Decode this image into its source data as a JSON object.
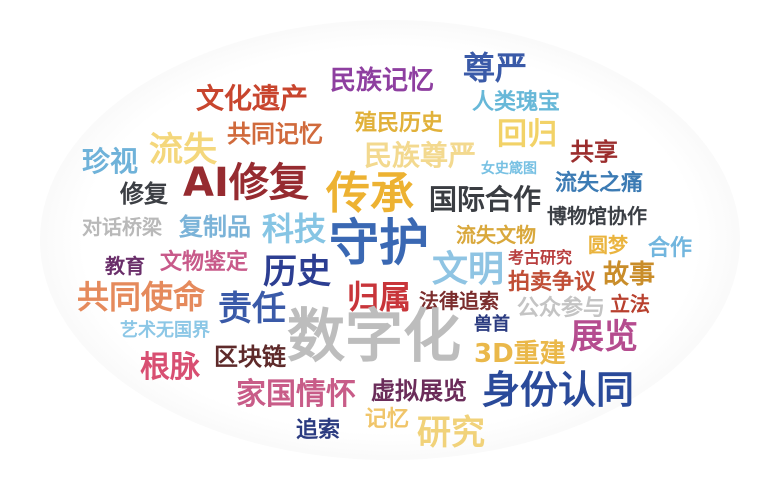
{
  "words": [
    {
      "text": "尊严",
      "color": "#3a5aa8"
    },
    {
      "text": "民族记忆",
      "color": "#8e3fa0"
    },
    {
      "text": "文化遗产",
      "color": "#c8452e"
    },
    {
      "text": "人类瑰宝",
      "color": "#67b8d8"
    },
    {
      "text": "殖民历史",
      "color": "#e1b13a"
    },
    {
      "text": "共同记忆",
      "color": "#d06a3c"
    },
    {
      "text": "回归",
      "color": "#f2d267"
    },
    {
      "text": "流失",
      "color": "#f4d77c"
    },
    {
      "text": "民族尊严",
      "color": "#f3d98f"
    },
    {
      "text": "共享",
      "color": "#9b2d2d"
    },
    {
      "text": "珍视",
      "color": "#6fb2d9"
    },
    {
      "text": "AI修复",
      "color": "#962b30"
    },
    {
      "text": "传承",
      "color": "#edb232"
    },
    {
      "text": "女史箴图",
      "color": "#78c1e3"
    },
    {
      "text": "流失之痛",
      "color": "#3c7bb4"
    },
    {
      "text": "修复",
      "color": "#3c3f44"
    },
    {
      "text": "国际合作",
      "color": "#3a3d42"
    },
    {
      "text": "博物馆协作",
      "color": "#3b3f45"
    },
    {
      "text": "对话桥梁",
      "color": "#b9b9b9"
    },
    {
      "text": "复制品",
      "color": "#7bb3d8"
    },
    {
      "text": "科技",
      "color": "#86c5e4"
    },
    {
      "text": "守护",
      "color": "#3a68b3"
    },
    {
      "text": "流失文物",
      "color": "#d9a83c"
    },
    {
      "text": "圆梦",
      "color": "#eab43f"
    },
    {
      "text": "合作",
      "color": "#72b6de"
    },
    {
      "text": "教育",
      "color": "#6a2f6a"
    },
    {
      "text": "文物鉴定",
      "color": "#c85a8a"
    },
    {
      "text": "历史",
      "color": "#2c3e92"
    },
    {
      "text": "文明",
      "color": "#8fc4e3"
    },
    {
      "text": "考古研究",
      "color": "#b83e3e"
    },
    {
      "text": "拍卖争议",
      "color": "#c04e36"
    },
    {
      "text": "故事",
      "color": "#c98d2a"
    },
    {
      "text": "共同使命",
      "color": "#e58a5c"
    },
    {
      "text": "归属",
      "color": "#c8353a"
    },
    {
      "text": "法律追索",
      "color": "#7b2d2d"
    },
    {
      "text": "公众参与",
      "color": "#c4c4c4"
    },
    {
      "text": "立法",
      "color": "#b8402e"
    },
    {
      "text": "责任",
      "color": "#3a5aa8"
    },
    {
      "text": "艺术无国界",
      "color": "#8cc7e6"
    },
    {
      "text": "数字化",
      "color": "#bdbdbd"
    },
    {
      "text": "兽首",
      "color": "#2b3b80"
    },
    {
      "text": "展览",
      "color": "#b54c8f"
    },
    {
      "text": "根脉",
      "color": "#d84f72"
    },
    {
      "text": "区块链",
      "color": "#5e2a2a"
    },
    {
      "text": "3D重建",
      "color": "#eab84a"
    },
    {
      "text": "家国情怀",
      "color": "#c85c88"
    },
    {
      "text": "虚拟展览",
      "color": "#6b2c5a"
    },
    {
      "text": "身份认同",
      "color": "#2a4a9a"
    },
    {
      "text": "追索",
      "color": "#2b3b80"
    },
    {
      "text": "记忆",
      "color": "#f0c56a"
    },
    {
      "text": "研究",
      "color": "#f1d27a"
    }
  ]
}
